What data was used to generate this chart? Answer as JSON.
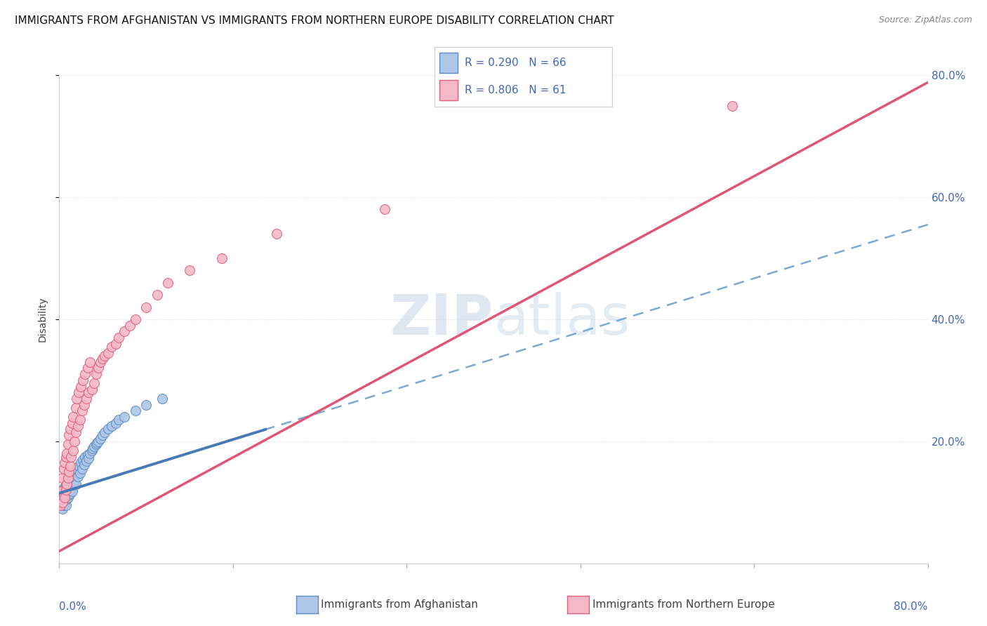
{
  "title": "IMMIGRANTS FROM AFGHANISTAN VS IMMIGRANTS FROM NORTHERN EUROPE DISABILITY CORRELATION CHART",
  "source": "Source: ZipAtlas.com",
  "ylabel": "Disability",
  "ytick_labels": [
    "20.0%",
    "40.0%",
    "60.0%",
    "80.0%"
  ],
  "ytick_values": [
    0.2,
    0.4,
    0.6,
    0.8
  ],
  "xlim": [
    0.0,
    0.8
  ],
  "ylim": [
    0.0,
    0.8
  ],
  "afghanistan_fill_color": "#aec6e8",
  "afghanistan_edge_color": "#5b8ec4",
  "northern_europe_fill_color": "#f5b8c8",
  "northern_europe_edge_color": "#e0607a",
  "afghanistan_R": 0.29,
  "afghanistan_N": 66,
  "northern_europe_R": 0.806,
  "northern_europe_N": 61,
  "trend_afghanistan_solid_color": "#4a7ab5",
  "trend_afghanistan_dash_color": "#7aaad0",
  "trend_northern_europe_color": "#e05575",
  "watermark_color": "#c8d8e8",
  "legend_text_color": "#4466bb",
  "background_color": "#ffffff",
  "grid_color": "#dddddd",
  "afg_x": [
    0.001,
    0.002,
    0.002,
    0.003,
    0.003,
    0.003,
    0.004,
    0.004,
    0.004,
    0.005,
    0.005,
    0.005,
    0.005,
    0.006,
    0.006,
    0.006,
    0.007,
    0.007,
    0.007,
    0.008,
    0.008,
    0.008,
    0.009,
    0.009,
    0.01,
    0.01,
    0.01,
    0.011,
    0.011,
    0.012,
    0.012,
    0.013,
    0.013,
    0.014,
    0.015,
    0.015,
    0.016,
    0.017,
    0.018,
    0.019,
    0.02,
    0.021,
    0.022,
    0.023,
    0.024,
    0.025,
    0.026,
    0.027,
    0.028,
    0.03,
    0.031,
    0.032,
    0.034,
    0.035,
    0.036,
    0.038,
    0.04,
    0.042,
    0.045,
    0.048,
    0.052,
    0.055,
    0.06,
    0.07,
    0.08,
    0.095
  ],
  "afg_y": [
    0.115,
    0.1,
    0.11,
    0.09,
    0.105,
    0.12,
    0.095,
    0.108,
    0.115,
    0.1,
    0.112,
    0.125,
    0.108,
    0.095,
    0.118,
    0.13,
    0.11,
    0.122,
    0.105,
    0.118,
    0.13,
    0.108,
    0.125,
    0.112,
    0.128,
    0.115,
    0.138,
    0.12,
    0.132,
    0.118,
    0.145,
    0.128,
    0.14,
    0.135,
    0.148,
    0.13,
    0.155,
    0.142,
    0.16,
    0.148,
    0.165,
    0.155,
    0.17,
    0.162,
    0.175,
    0.168,
    0.178,
    0.172,
    0.18,
    0.185,
    0.188,
    0.192,
    0.195,
    0.198,
    0.2,
    0.205,
    0.21,
    0.215,
    0.22,
    0.225,
    0.23,
    0.235,
    0.24,
    0.25,
    0.26,
    0.27
  ],
  "ne_x": [
    0.001,
    0.002,
    0.002,
    0.003,
    0.003,
    0.004,
    0.004,
    0.005,
    0.005,
    0.006,
    0.006,
    0.007,
    0.007,
    0.008,
    0.008,
    0.009,
    0.009,
    0.01,
    0.01,
    0.011,
    0.012,
    0.013,
    0.013,
    0.014,
    0.015,
    0.015,
    0.016,
    0.017,
    0.018,
    0.019,
    0.02,
    0.021,
    0.022,
    0.023,
    0.024,
    0.025,
    0.026,
    0.027,
    0.028,
    0.03,
    0.032,
    0.034,
    0.036,
    0.038,
    0.04,
    0.042,
    0.045,
    0.048,
    0.052,
    0.055,
    0.06,
    0.065,
    0.07,
    0.08,
    0.09,
    0.1,
    0.12,
    0.15,
    0.2,
    0.3,
    0.62
  ],
  "ne_y": [
    0.095,
    0.105,
    0.118,
    0.1,
    0.14,
    0.112,
    0.155,
    0.108,
    0.165,
    0.12,
    0.175,
    0.13,
    0.18,
    0.14,
    0.195,
    0.15,
    0.21,
    0.16,
    0.22,
    0.175,
    0.23,
    0.185,
    0.24,
    0.2,
    0.255,
    0.215,
    0.27,
    0.225,
    0.28,
    0.235,
    0.29,
    0.25,
    0.3,
    0.26,
    0.31,
    0.27,
    0.32,
    0.28,
    0.33,
    0.285,
    0.295,
    0.31,
    0.32,
    0.33,
    0.335,
    0.34,
    0.345,
    0.355,
    0.36,
    0.37,
    0.38,
    0.39,
    0.4,
    0.42,
    0.44,
    0.46,
    0.48,
    0.5,
    0.54,
    0.58,
    0.75
  ]
}
